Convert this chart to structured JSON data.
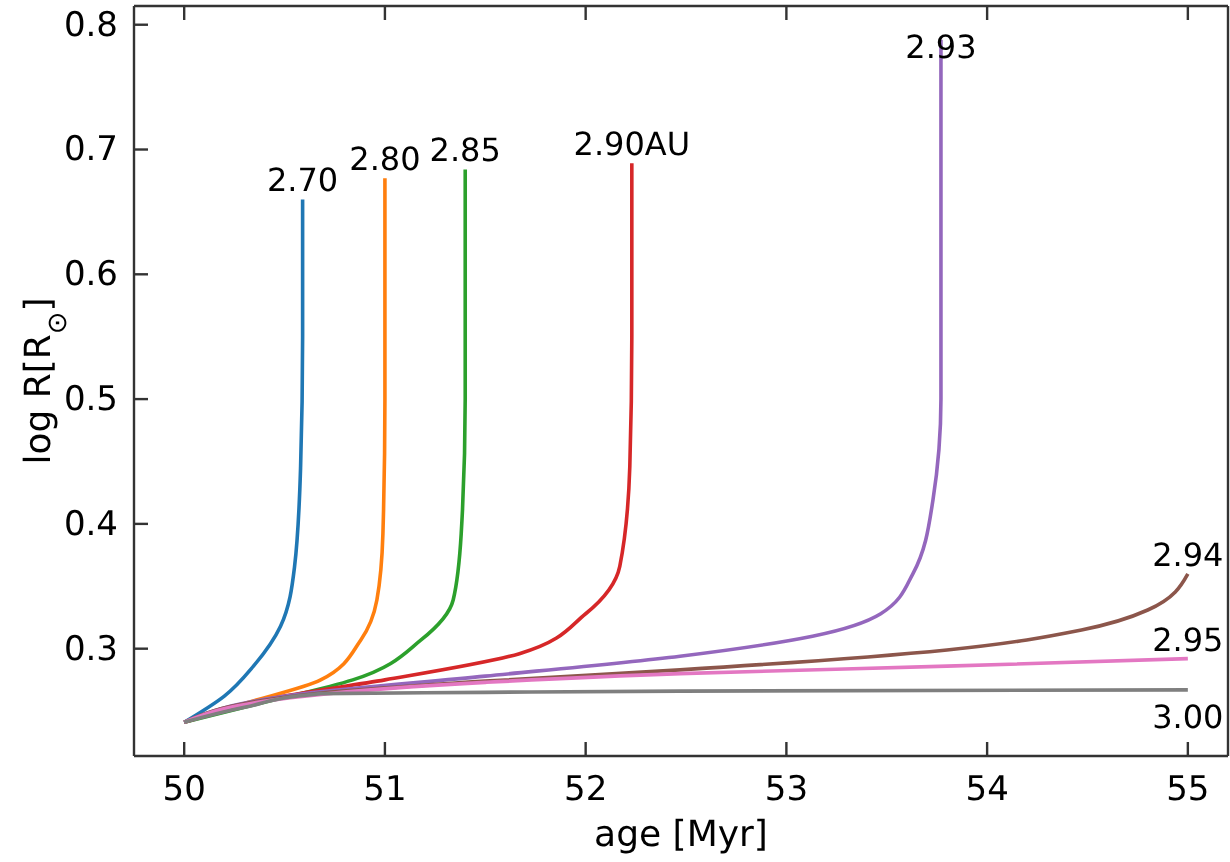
{
  "chart_data": {
    "type": "line",
    "xlabel": "age [Myr]",
    "ylabel": "log R[R$_{⊙}$]",
    "xlim": [
      49.75,
      55.2
    ],
    "ylim": [
      0.214,
      0.815
    ],
    "xticks": [
      50,
      51,
      52,
      53,
      54,
      55
    ],
    "yticks": [
      0.3,
      0.4,
      0.5,
      0.6,
      0.7,
      0.8
    ],
    "grid": false,
    "marker": "none",
    "line_style": "solid",
    "series": [
      {
        "color": "#1f77b4",
        "x": [
          50,
          50.2,
          50.345,
          50.48,
          50.55,
          50.58,
          50.59,
          50.59
        ],
        "values": [
          0.241,
          0.262,
          0.286,
          0.318,
          0.366,
          0.446,
          0.55,
          0.66
        ]
      },
      {
        "color": "#ff7f0e",
        "x": [
          50,
          50.3,
          50.68,
          50.88,
          50.96,
          50.99,
          51.0,
          51.0
        ],
        "values": [
          0.241,
          0.256,
          0.275,
          0.307,
          0.339,
          0.392,
          0.5,
          0.677
        ]
      },
      {
        "color": "#2ca02c",
        "x": [
          50,
          50.4,
          50.84,
          51.18,
          51.34,
          51.38,
          51.4,
          51.4
        ],
        "values": [
          0.241,
          0.257,
          0.275,
          0.307,
          0.339,
          0.392,
          0.5,
          0.684
        ]
      },
      {
        "color": "#d62728",
        "x": [
          50,
          50.5,
          51.0,
          51.67,
          52.0,
          52.17,
          52.22,
          52.23,
          52.23
        ],
        "values": [
          0.241,
          0.262,
          0.275,
          0.296,
          0.328,
          0.366,
          0.446,
          0.55,
          0.689
        ]
      },
      {
        "color": "#9467bd",
        "x": [
          50,
          50.6,
          51.5,
          52.47,
          53.13,
          53.47,
          53.63,
          53.73,
          53.77,
          53.77
        ],
        "values": [
          0.241,
          0.264,
          0.278,
          0.294,
          0.31,
          0.328,
          0.36,
          0.419,
          0.5,
          0.788
        ]
      },
      {
        "color": "#8c564b",
        "x": [
          50,
          50.6,
          51.5,
          52.47,
          53.8,
          54.47,
          54.8,
          55.0
        ],
        "values": [
          0.241,
          0.263,
          0.274,
          0.283,
          0.299,
          0.315,
          0.331,
          0.36
        ]
      },
      {
        "color": "#e377c2",
        "x": [
          50,
          50.6,
          51.5,
          52.47,
          53.8,
          55.0
        ],
        "values": [
          0.241,
          0.262,
          0.273,
          0.28,
          0.286,
          0.292
        ]
      },
      {
        "color": "#7f7f7f",
        "x": [
          50,
          50.3,
          50.68,
          51.5,
          52.47,
          55.0
        ],
        "values": [
          0.241,
          0.253,
          0.264,
          0.265,
          0.266,
          0.267
        ]
      }
    ],
    "annotations": [
      {
        "text": "2.70",
        "x": 50.59,
        "y": 0.66
      },
      {
        "text": "2.80",
        "x": 51.0,
        "y": 0.677
      },
      {
        "text": "2.85",
        "x": 51.4,
        "y": 0.684
      },
      {
        "text": "2.90AU",
        "x": 52.23,
        "y": 0.689
      },
      {
        "text": "2.93",
        "x": 53.77,
        "y": 0.788
      },
      {
        "text": "2.94",
        "x": 55.0,
        "y": 0.36
      },
      {
        "text": "2.95",
        "x": 55.0,
        "y": 0.292
      },
      {
        "text": "3.00",
        "x": 55.0,
        "y": 0.267
      }
    ]
  }
}
